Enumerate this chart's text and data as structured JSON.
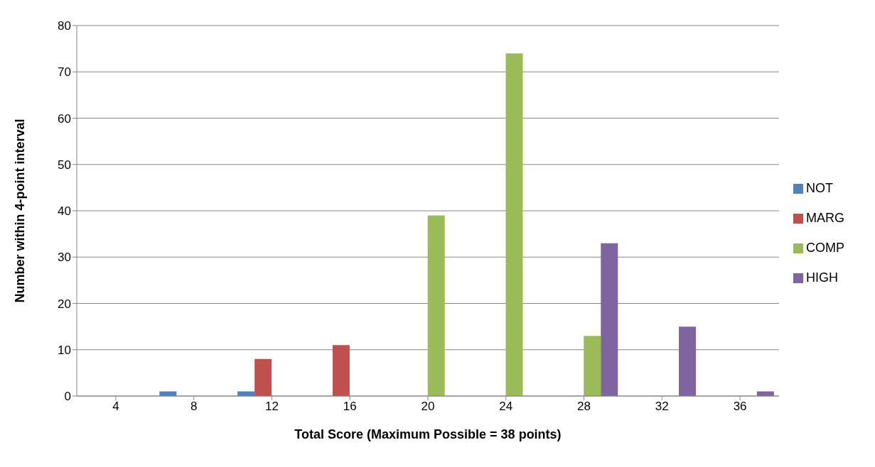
{
  "chart_data": {
    "type": "bar",
    "xlabel": "Total Score (Maximum Possible = 38 points)",
    "ylabel": "Number within 4-point interval",
    "categories": [
      "4",
      "8",
      "12",
      "16",
      "20",
      "24",
      "28",
      "32",
      "36"
    ],
    "series": [
      {
        "name": "NOT",
        "color": "#4f81bd",
        "values": [
          null,
          1,
          1,
          null,
          null,
          null,
          null,
          null,
          null
        ]
      },
      {
        "name": "MARG",
        "color": "#c0504d",
        "values": [
          null,
          null,
          8,
          11,
          null,
          null,
          null,
          null,
          null
        ]
      },
      {
        "name": "COMP",
        "color": "#9bbb59",
        "values": [
          null,
          null,
          null,
          null,
          39,
          74,
          13,
          null,
          null
        ]
      },
      {
        "name": "HIGH",
        "color": "#8064a2",
        "values": [
          null,
          null,
          null,
          null,
          null,
          null,
          33,
          15,
          1
        ]
      }
    ],
    "ylim": [
      0,
      80
    ],
    "yticks": [
      0,
      10,
      20,
      30,
      40,
      50,
      60,
      70,
      80
    ],
    "grid": "y",
    "legend": "right"
  }
}
